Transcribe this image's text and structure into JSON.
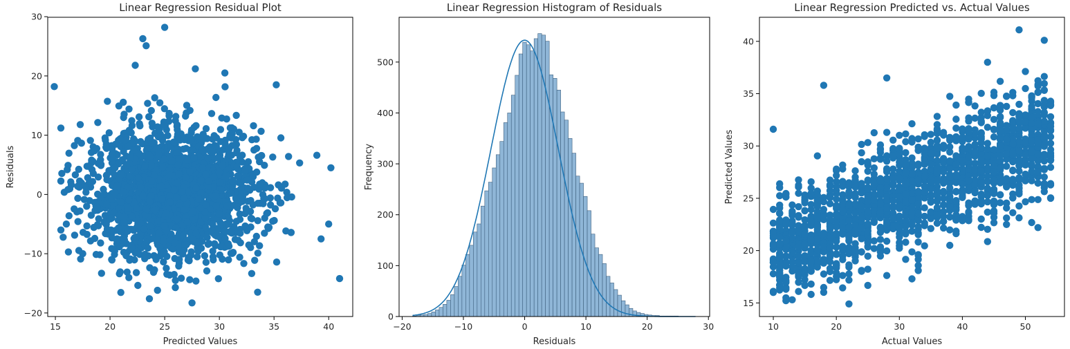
{
  "colors": {
    "marker": "#1f77b4",
    "bar_fill": "#8fb6d7",
    "bar_edge": "#3d5f7e",
    "kde_line": "#1f77b4",
    "axes": "#000000",
    "text": "#262626"
  },
  "chart_data": [
    {
      "type": "scatter",
      "title": "Linear Regression Residual Plot",
      "xlabel": "Predicted Values",
      "ylabel": "Residuals",
      "xlim": [
        14.3,
        42.2
      ],
      "ylim": [
        -20.6,
        29.9
      ],
      "xticks": [
        15,
        20,
        25,
        30,
        35,
        40
      ],
      "yticks": [
        -20,
        -10,
        0,
        10,
        20,
        30
      ],
      "grid": false,
      "distribution": {
        "cloud_center": [
          25.7,
          0.0
        ],
        "cloud_spread": [
          4.0,
          5.5
        ],
        "approx_point_count": 10000
      },
      "extreme_points": [
        {
          "x": 25.0,
          "y": 28.2
        },
        {
          "x": 23.0,
          "y": 26.3
        },
        {
          "x": 23.3,
          "y": 25.1
        },
        {
          "x": 14.9,
          "y": 18.2
        },
        {
          "x": 41.0,
          "y": -14.2
        },
        {
          "x": 40.2,
          "y": 4.5
        },
        {
          "x": 40.0,
          "y": -5.0
        },
        {
          "x": 27.5,
          "y": -18.3
        },
        {
          "x": 23.6,
          "y": -17.6
        },
        {
          "x": 39.3,
          "y": -7.5
        },
        {
          "x": 22.3,
          "y": 21.8
        },
        {
          "x": 27.8,
          "y": 21.2
        },
        {
          "x": 30.5,
          "y": 20.5
        },
        {
          "x": 16.0,
          "y": -5.0
        },
        {
          "x": 17.5,
          "y": -10.0
        },
        {
          "x": 33.5,
          "y": -16.5
        },
        {
          "x": 35.2,
          "y": 18.5
        },
        {
          "x": 15.5,
          "y": 11.2
        }
      ]
    },
    {
      "type": "bar",
      "title": "Linear Regression Histogram of Residuals",
      "xlabel": "Residuals",
      "ylabel": "Frequency",
      "xlim": [
        -20.5,
        30.2
      ],
      "ylim": [
        0,
        588
      ],
      "xticks": [
        -20,
        -10,
        0,
        10,
        20,
        30
      ],
      "yticks": [
        0,
        100,
        200,
        300,
        400,
        500
      ],
      "grid": false,
      "bin_start": -18.3,
      "bin_width": 0.62,
      "values": [
        1,
        2,
        3,
        4,
        6,
        9,
        13,
        18,
        24,
        32,
        43,
        59,
        79,
        101,
        122,
        140,
        166,
        182,
        217,
        247,
        264,
        292,
        318,
        344,
        381,
        400,
        435,
        474,
        516,
        539,
        534,
        522,
        546,
        556,
        553,
        541,
        475,
        468,
        445,
        402,
        386,
        350,
        321,
        276,
        262,
        236,
        208,
        162,
        135,
        122,
        104,
        79,
        66,
        53,
        42,
        31,
        23,
        16,
        11,
        8,
        6,
        4,
        3,
        2,
        2,
        1,
        1,
        1,
        1,
        1,
        0,
        0,
        0,
        0,
        0,
        0,
        0
      ],
      "kde": {
        "peak_x": 0.0,
        "peak_y": 543,
        "sigma": 5.5
      }
    },
    {
      "type": "scatter",
      "title": "Linear Regression Predicted vs. Actual Values",
      "xlabel": "Actual Values",
      "ylabel": "Predicted Values",
      "xlim": [
        7.8,
        56.2
      ],
      "ylim": [
        13.7,
        42.3
      ],
      "xticks": [
        10,
        20,
        30,
        40,
        50
      ],
      "yticks": [
        15,
        20,
        25,
        30,
        35,
        40
      ],
      "grid": false,
      "distribution": {
        "actual_range": [
          10,
          54
        ],
        "integer_actual_values": true,
        "trend": {
          "slope": 0.25,
          "intercept": 17.5
        },
        "spread": 2.6,
        "approx_point_count": 9000
      },
      "extreme_points": [
        {
          "x": 49,
          "y": 41.1
        },
        {
          "x": 10,
          "y": 31.6
        },
        {
          "x": 13,
          "y": 15.3
        },
        {
          "x": 22,
          "y": 14.9
        },
        {
          "x": 44,
          "y": 38.0
        },
        {
          "x": 52,
          "y": 22.2
        },
        {
          "x": 54,
          "y": 25.0
        },
        {
          "x": 47,
          "y": 22.5
        },
        {
          "x": 38,
          "y": 20.5
        },
        {
          "x": 32,
          "y": 17.3
        },
        {
          "x": 33,
          "y": 18.1
        },
        {
          "x": 53,
          "y": 40.1
        },
        {
          "x": 28,
          "y": 36.5
        },
        {
          "x": 18,
          "y": 35.8
        }
      ]
    }
  ]
}
